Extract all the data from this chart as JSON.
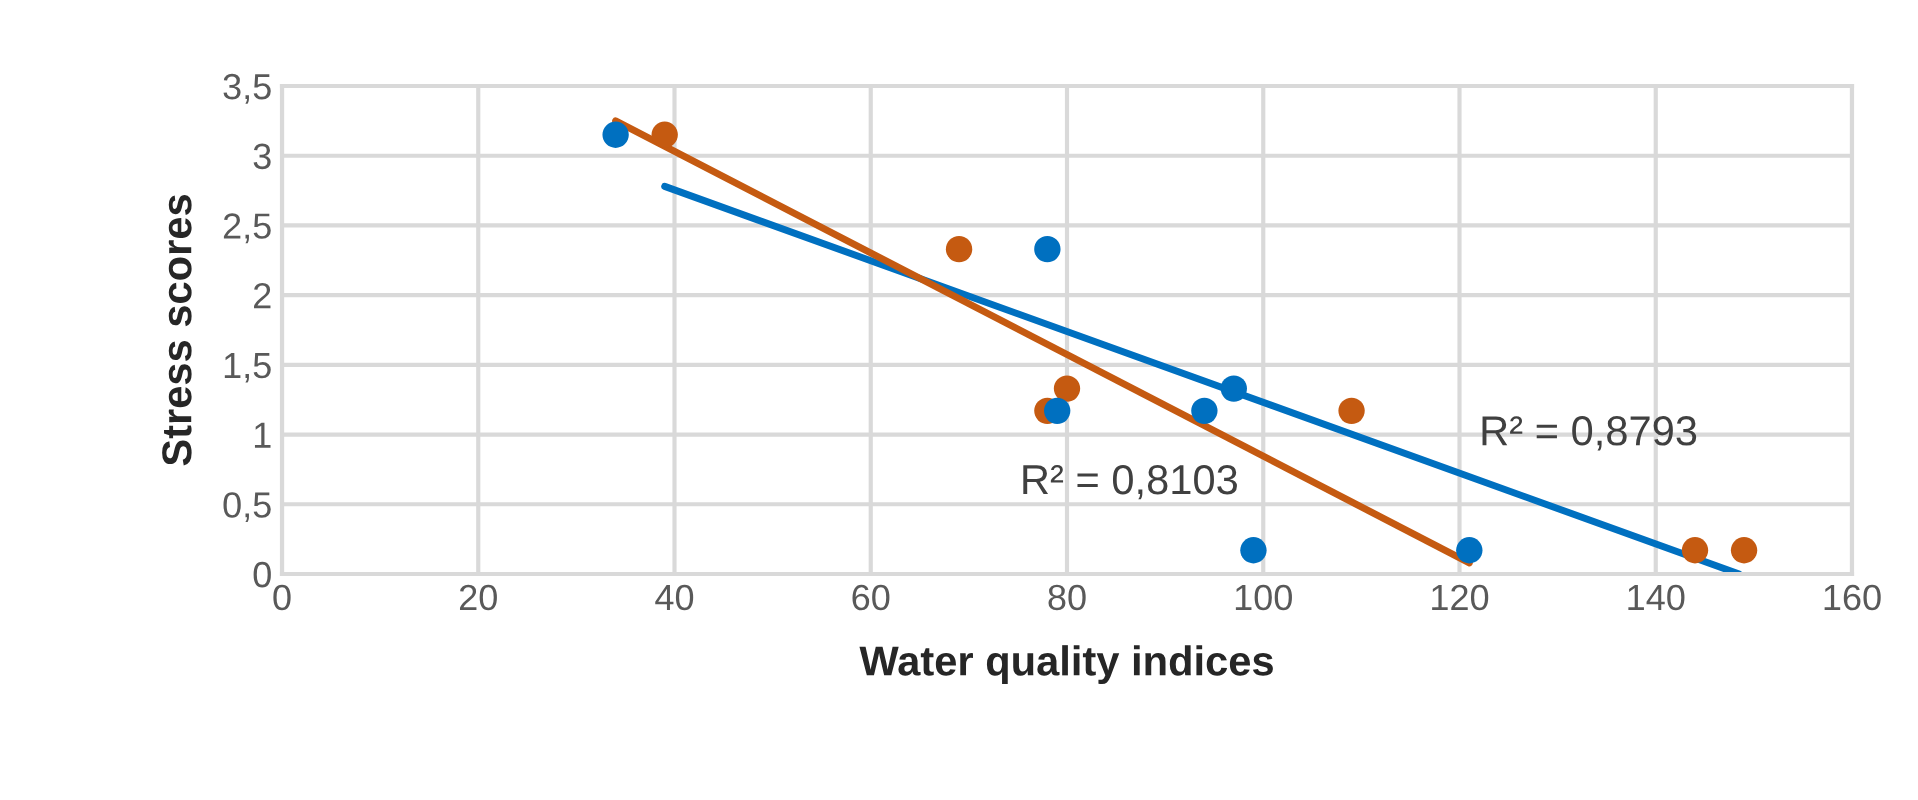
{
  "chart_data": {
    "type": "scatter",
    "xlabel": "Water quality indices",
    "ylabel": "Stress scores",
    "series": [
      {
        "marker": "circle",
        "color": "#0070c0",
        "x": [
          34,
          78,
          79,
          94,
          97,
          99,
          121
        ],
        "values": [
          3.15,
          2.33,
          1.17,
          1.17,
          1.33,
          0.17,
          0.17
        ]
      },
      {
        "marker": "circle",
        "color": "#c55a11",
        "x": [
          39,
          69,
          78,
          80,
          109,
          144,
          149
        ],
        "values": [
          3.15,
          2.33,
          1.17,
          1.33,
          1.17,
          0.17,
          0.17
        ]
      },
      {
        "type": "line",
        "marker": "none",
        "color": "#0070c0",
        "x": [
          39,
          148.5
        ],
        "values": [
          2.78,
          0
        ]
      },
      {
        "type": "line",
        "marker": "none",
        "color": "#c55a11",
        "x": [
          34,
          121
        ],
        "values": [
          3.25,
          0.08
        ]
      }
    ],
    "annotations": [
      "R² = 0,8103",
      "R² = 0,8793"
    ],
    "xlim": [
      0,
      160
    ],
    "xticks": [
      0,
      20,
      40,
      60,
      80,
      100,
      120,
      140,
      160
    ],
    "ylim": [
      0,
      3.5
    ],
    "yticks": [
      0,
      {
        "value": 0.5,
        "label": "0,5"
      },
      1,
      {
        "value": 1.5,
        "label": "1,5"
      },
      2,
      {
        "value": 2.5,
        "label": "2,5"
      },
      3,
      {
        "value": 3.5,
        "label": "3,5"
      }
    ],
    "grid": true,
    "line_style": "solid",
    "legend": false
  }
}
